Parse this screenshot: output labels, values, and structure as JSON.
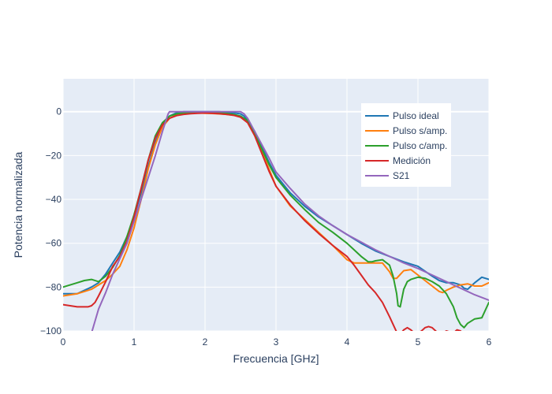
{
  "chart_data": {
    "type": "line",
    "xlabel": "Frecuencia [GHz]",
    "ylabel": "Potencia normalizada",
    "xlim": [
      0,
      6
    ],
    "ylim": [
      -100,
      15
    ],
    "xticks": [
      0,
      1,
      2,
      3,
      4,
      5,
      6
    ],
    "yticks": [
      -100,
      -80,
      -60,
      -40,
      -20,
      0
    ],
    "grid": true,
    "legend_position": "top-right",
    "colors": {
      "plot_bg": "#e5ecf6",
      "grid": "#ffffff",
      "text": "#2a3f5f"
    },
    "series": [
      {
        "name": "Pulso ideal",
        "color": "#1f77b4",
        "x": [
          0,
          0.2,
          0.4,
          0.5,
          0.6,
          0.7,
          0.8,
          0.9,
          1.0,
          1.1,
          1.2,
          1.3,
          1.4,
          1.5,
          1.6,
          1.7,
          1.8,
          1.9,
          2.0,
          2.1,
          2.2,
          2.3,
          2.4,
          2.5,
          2.55,
          2.6,
          2.7,
          2.8,
          2.9,
          3.0,
          3.2,
          3.4,
          3.6,
          3.8,
          4.0,
          4.2,
          4.4,
          4.6,
          4.8,
          5.0,
          5.2,
          5.3,
          5.4,
          5.5,
          5.6,
          5.65,
          5.7,
          5.8,
          5.9,
          6.0
        ],
        "y": [
          -83,
          -83,
          -80,
          -78,
          -74,
          -69,
          -64,
          -57,
          -48,
          -37,
          -25,
          -14,
          -6,
          -2,
          -0.5,
          0,
          0,
          0,
          0,
          0,
          0,
          -0.3,
          -0.5,
          -1,
          -2,
          -4,
          -9,
          -16,
          -23,
          -29,
          -37,
          -43,
          -48,
          -52,
          -56,
          -60,
          -63.5,
          -66,
          -68.5,
          -70.5,
          -75,
          -77,
          -78,
          -78,
          -79,
          -80.5,
          -81,
          -78,
          -75.5,
          -76.5
        ]
      },
      {
        "name": "Pulso s/amp.",
        "color": "#ff7f0e",
        "x": [
          0,
          0.2,
          0.3,
          0.4,
          0.5,
          0.6,
          0.7,
          0.8,
          0.9,
          1.0,
          1.1,
          1.2,
          1.3,
          1.4,
          1.5,
          1.6,
          1.7,
          1.8,
          1.9,
          2.0,
          2.1,
          2.2,
          2.3,
          2.4,
          2.5,
          2.6,
          2.7,
          2.8,
          2.9,
          3.0,
          3.2,
          3.4,
          3.6,
          3.8,
          4.0,
          4.1,
          4.3,
          4.5,
          4.6,
          4.65,
          4.7,
          4.8,
          4.9,
          5.0,
          5.1,
          5.2,
          5.3,
          5.35,
          5.4,
          5.5,
          5.6,
          5.7,
          5.8,
          5.9,
          6.0
        ],
        "y": [
          -84,
          -83,
          -82,
          -81,
          -79,
          -77,
          -74,
          -70.5,
          -63,
          -53,
          -40,
          -26,
          -15,
          -7,
          -3,
          -1.5,
          -1,
          -0.6,
          -0.6,
          -0.7,
          -0.8,
          -1,
          -1.2,
          -1.6,
          -2.5,
          -4.5,
          -10,
          -18,
          -26,
          -34,
          -43,
          -49,
          -55,
          -61,
          -67.5,
          -69,
          -69,
          -69,
          -73,
          -76,
          -76,
          -72.5,
          -72,
          -74.5,
          -77,
          -79.5,
          -82,
          -82.5,
          -81.5,
          -80,
          -79,
          -78.5,
          -79.5,
          -79.5,
          -78
        ]
      },
      {
        "name": "Pulso c/amp.",
        "color": "#2ca02c",
        "x": [
          0,
          0.1,
          0.2,
          0.3,
          0.4,
          0.5,
          0.6,
          0.7,
          0.8,
          0.9,
          1.0,
          1.1,
          1.2,
          1.3,
          1.4,
          1.5,
          1.6,
          1.7,
          1.8,
          1.9,
          2.0,
          2.1,
          2.2,
          2.3,
          2.4,
          2.5,
          2.6,
          2.7,
          2.8,
          2.9,
          3.0,
          3.2,
          3.4,
          3.6,
          3.8,
          4.0,
          4.1,
          4.2,
          4.3,
          4.35,
          4.4,
          4.5,
          4.6,
          4.65,
          4.7,
          4.72,
          4.75,
          4.8,
          4.85,
          4.9,
          5.0,
          5.1,
          5.2,
          5.3,
          5.4,
          5.5,
          5.55,
          5.6,
          5.65,
          5.7,
          5.8,
          5.9,
          6.0
        ],
        "y": [
          -80,
          -79,
          -78,
          -77,
          -76.5,
          -77.5,
          -75,
          -71,
          -65.5,
          -57,
          -47,
          -35,
          -22,
          -11,
          -5,
          -2,
          -1,
          -0.5,
          -0.3,
          -0.2,
          -0.3,
          -0.4,
          -0.6,
          -0.8,
          -1.2,
          -2,
          -4,
          -10,
          -17,
          -24,
          -30,
          -38,
          -44.5,
          -50.5,
          -55,
          -60,
          -63,
          -66,
          -68.5,
          -68.5,
          -68,
          -67.5,
          -70,
          -75,
          -83,
          -88.5,
          -89,
          -81,
          -77.5,
          -76.5,
          -75.5,
          -76,
          -77.5,
          -79.5,
          -83,
          -89,
          -94,
          -97,
          -98.5,
          -96.5,
          -94.5,
          -94,
          -87
        ]
      },
      {
        "name": "Medición",
        "color": "#d62728",
        "x": [
          0,
          0.1,
          0.2,
          0.3,
          0.35,
          0.4,
          0.45,
          0.5,
          0.6,
          0.7,
          0.8,
          0.9,
          1.0,
          1.1,
          1.2,
          1.3,
          1.4,
          1.5,
          1.6,
          1.7,
          1.8,
          1.9,
          2.0,
          2.1,
          2.2,
          2.3,
          2.4,
          2.5,
          2.6,
          2.7,
          2.8,
          2.9,
          3.0,
          3.2,
          3.4,
          3.6,
          3.8,
          4.0,
          4.1,
          4.2,
          4.3,
          4.4,
          4.5,
          4.6,
          4.65,
          4.7,
          4.75,
          4.8,
          4.85,
          4.9,
          4.95,
          5.0,
          5.05,
          5.1,
          5.15,
          5.2,
          5.25,
          5.3,
          5.35,
          5.4,
          5.45,
          5.5,
          5.55,
          5.6,
          5.65,
          5.7
        ],
        "y": [
          -88,
          -88.5,
          -89,
          -89,
          -89,
          -88.5,
          -87,
          -84,
          -77.5,
          -70.5,
          -66,
          -59,
          -48,
          -35,
          -22,
          -12,
          -6,
          -3,
          -1.8,
          -1.2,
          -0.9,
          -0.7,
          -0.6,
          -0.7,
          -0.9,
          -1.2,
          -1.6,
          -2.5,
          -5,
          -11,
          -19,
          -27,
          -34,
          -42.5,
          -49.5,
          -55.5,
          -61,
          -66,
          -70,
          -74.5,
          -79,
          -82.5,
          -87,
          -93.5,
          -97,
          -100.5,
          -101.5,
          -99.5,
          -98.5,
          -99.5,
          -101,
          -101,
          -100,
          -98.5,
          -98,
          -98.5,
          -100,
          -101.5,
          -101,
          -100,
          -100.5,
          -101,
          -99.5,
          -100,
          -101.5,
          -103
        ]
      },
      {
        "name": "S21",
        "color": "#9467bd",
        "x": [
          0.4,
          0.45,
          0.5,
          0.6,
          0.7,
          0.8,
          0.9,
          1.0,
          1.1,
          1.2,
          1.3,
          1.4,
          1.48,
          1.5,
          1.6,
          2.0,
          2.4,
          2.5,
          2.55,
          2.6,
          2.7,
          2.8,
          2.9,
          3.0,
          3.2,
          3.4,
          3.6,
          3.8,
          4.0,
          4.2,
          4.4,
          4.6,
          4.8,
          5.0,
          5.2,
          5.4,
          5.6,
          5.8,
          6.0
        ],
        "y": [
          -101,
          -95.5,
          -90,
          -82.5,
          -74,
          -67,
          -60,
          -50,
          -40,
          -30,
          -20,
          -9,
          -1,
          0,
          0,
          0,
          0,
          0,
          -1,
          -3,
          -9,
          -15,
          -21,
          -27.5,
          -35,
          -42,
          -47.5,
          -52,
          -56,
          -59.5,
          -63,
          -66,
          -69,
          -71.5,
          -74.5,
          -77.5,
          -80.5,
          -83.5,
          -86
        ]
      }
    ]
  }
}
